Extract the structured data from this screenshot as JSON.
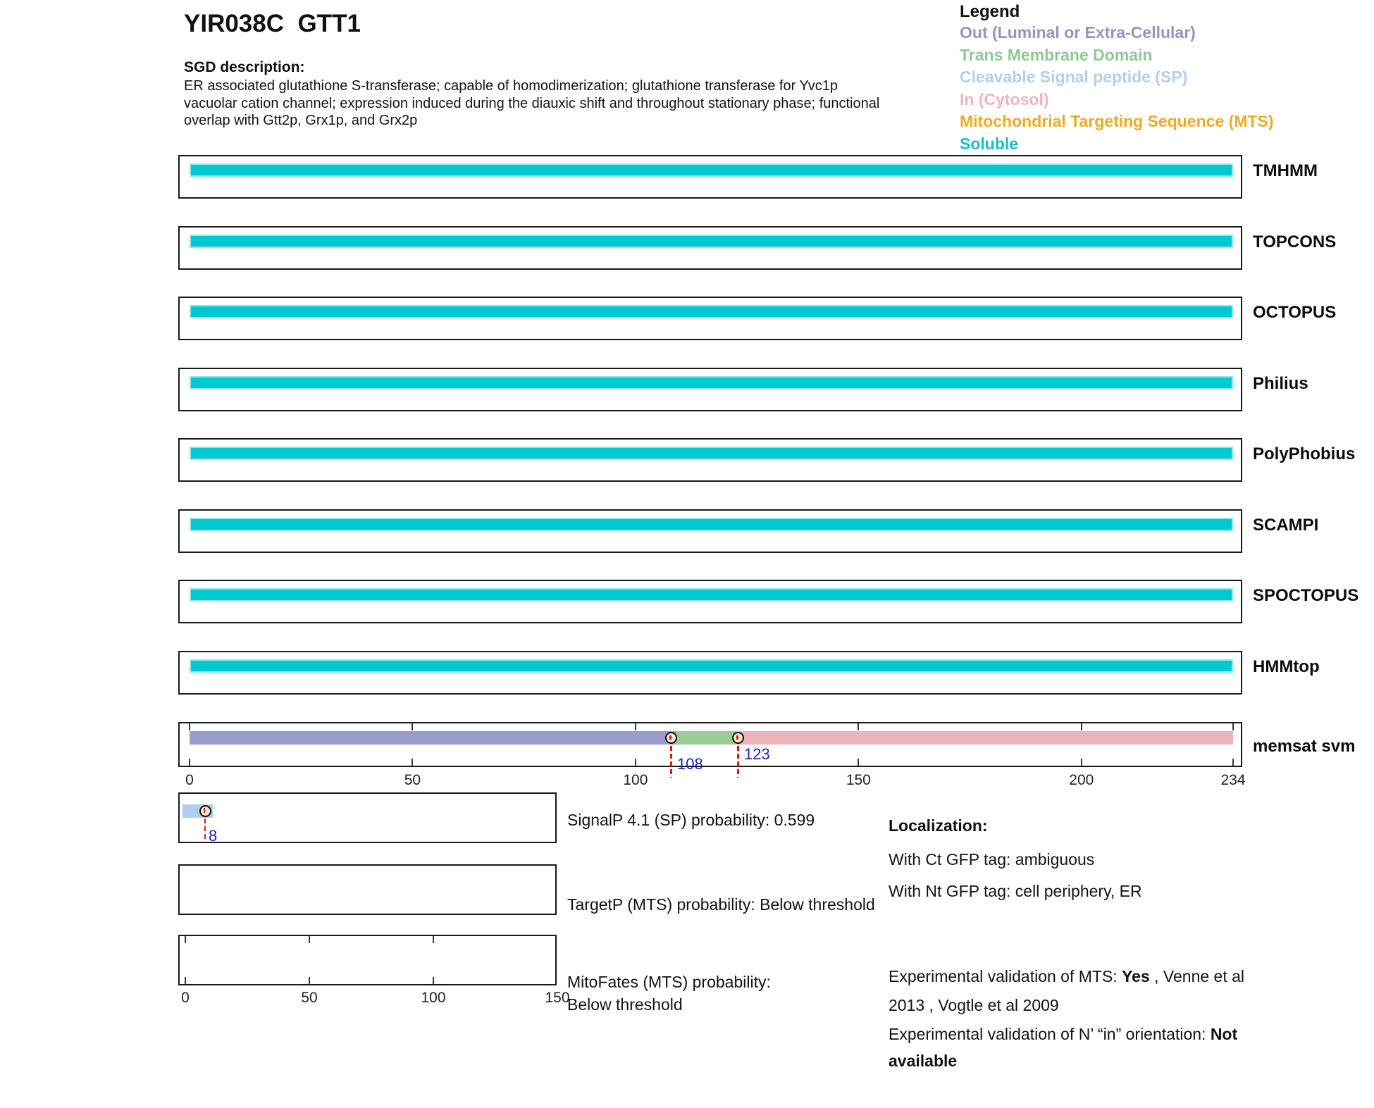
{
  "header": {
    "title": "YIR038C  GTT1",
    "sgd_label": "SGD description:",
    "sgd_description": "ER associated glutathione S-transferase; capable of homodimerization; glutathione transferase for Yvc1p vacuolar cation channel; expression induced during the diauxic shift and throughout stationary phase; functional overlap with Gtt2p, Grx1p, and Grx2p"
  },
  "legend": {
    "title": "Legend",
    "items": [
      {
        "key": "out",
        "label": "Out (Luminal or Extra-Cellular)",
        "color": "#9394c8"
      },
      {
        "key": "tm",
        "label": "Trans Membrane Domain",
        "color": "#8bcb92"
      },
      {
        "key": "sp",
        "label": "Cleavable Signal peptide (SP)",
        "color": "#b0cff2"
      },
      {
        "key": "in",
        "label": "In (Cytosol)",
        "color": "#f4b3b7"
      },
      {
        "key": "mts",
        "label": "Mitochondrial Targeting Sequence (MTS)",
        "color": "#eeaa22"
      },
      {
        "key": "soluble",
        "label": "Soluble",
        "color": "#14c0ca"
      }
    ]
  },
  "colors": {
    "soluble": "#00c9d2",
    "soluble_border": "#8fe9ec",
    "out": "#9a9bcd",
    "tm": "#9acc9a",
    "in": "#ecb4b9",
    "sp": "#aecdf0",
    "marker_fill": "#f8ecd0",
    "dash_red": "#ee1111",
    "number_blue": "#1d1dd0",
    "box_border": "#1a1a1a"
  },
  "chart_data": {
    "type": "protein-topology-tracks",
    "protein": "YIR038C GTT1",
    "sequence_length": 234,
    "main_axis": {
      "min": 0,
      "max": 234,
      "ticks": [
        0,
        50,
        100,
        150,
        200,
        234
      ]
    },
    "prob_axis": {
      "min": 0,
      "max": 150,
      "ticks": [
        0,
        50,
        100,
        150
      ]
    },
    "tracks": [
      {
        "name": "TMHMM",
        "segments": [
          {
            "type": "soluble",
            "start": 1,
            "end": 234
          }
        ],
        "markers": []
      },
      {
        "name": "TOPCONS",
        "segments": [
          {
            "type": "soluble",
            "start": 1,
            "end": 234
          }
        ],
        "markers": []
      },
      {
        "name": "OCTOPUS",
        "segments": [
          {
            "type": "soluble",
            "start": 1,
            "end": 234
          }
        ],
        "markers": []
      },
      {
        "name": "Philius",
        "segments": [
          {
            "type": "soluble",
            "start": 1,
            "end": 234
          }
        ],
        "markers": []
      },
      {
        "name": "PolyPhobius",
        "segments": [
          {
            "type": "soluble",
            "start": 1,
            "end": 234
          }
        ],
        "markers": []
      },
      {
        "name": "SCAMPI",
        "segments": [
          {
            "type": "soluble",
            "start": 1,
            "end": 234
          }
        ],
        "markers": []
      },
      {
        "name": "SPOCTOPUS",
        "segments": [
          {
            "type": "soluble",
            "start": 1,
            "end": 234
          }
        ],
        "markers": []
      },
      {
        "name": "HMMtop",
        "segments": [
          {
            "type": "soluble",
            "start": 1,
            "end": 234
          }
        ],
        "markers": []
      },
      {
        "name": "memsat svm",
        "has_axis": true,
        "segments": [
          {
            "type": "out",
            "start": 1,
            "end": 109
          },
          {
            "type": "tm",
            "start": 109,
            "end": 123
          },
          {
            "type": "in",
            "start": 123,
            "end": 234
          }
        ],
        "markers": [
          {
            "pos": 108,
            "label": "108"
          },
          {
            "pos": 123,
            "label": "123"
          }
        ]
      }
    ],
    "probability_tracks": [
      {
        "name": "SignalP",
        "caption": "SignalP 4.1 (SP) probability: 0.599",
        "segments": [
          {
            "type": "sp",
            "start": 0,
            "end": 11
          }
        ],
        "markers": [
          {
            "pos": 8,
            "label": "8"
          }
        ],
        "axis_ticks": false,
        "value": 0.599
      },
      {
        "name": "TargetP",
        "caption": "TargetP (MTS) probability: Below threshold",
        "segments": [],
        "markers": [],
        "axis_ticks": false,
        "value": "Below threshold"
      },
      {
        "name": "MitoFates",
        "caption": "MitoFates (MTS) probability: Below threshold",
        "segments": [],
        "markers": [],
        "axis_ticks": true,
        "value": "Below threshold"
      }
    ]
  },
  "localization": {
    "title": "Localization:",
    "lines": [
      "With Ct GFP tag: ambiguous",
      "With Nt GFP tag: cell periphery, ER"
    ]
  },
  "validation": {
    "mts": {
      "prefix": "Experimental validation of MTS: ",
      "bold": "Yes",
      "suffix": " , Venne et al 2013 , Vogtle et al 2009"
    },
    "orientation": {
      "prefix": "Experimental validation of N’ “in” orientation: ",
      "bold": "Not available"
    }
  }
}
